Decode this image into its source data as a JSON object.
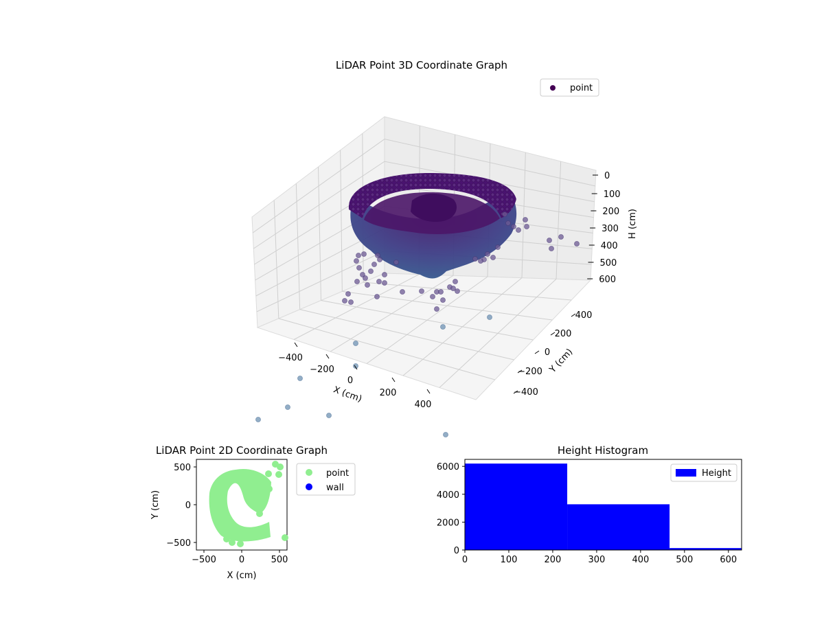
{
  "chart_data": [
    {
      "type": "scatter",
      "title": "LiDAR Point 3D Coordinate Graph",
      "xlabel": "X (cm)",
      "ylabel": "Y (cm)",
      "zlabel": "H (cm)",
      "xlim": [
        -500,
        500
      ],
      "ylim": [
        -500,
        500
      ],
      "zlim": [
        0,
        620
      ],
      "z_inverted": true,
      "x_ticks": [
        "−400",
        "−200",
        "0",
        "200",
        "400"
      ],
      "y_ticks": [
        "−400",
        "−200",
        "0",
        "200",
        "400"
      ],
      "z_ticks": [
        "0",
        "100",
        "200",
        "300",
        "400",
        "500",
        "600"
      ],
      "legend": [
        "point"
      ],
      "legend_position": "upper-right",
      "grid": true,
      "cmap": "viridis",
      "series": [
        {
          "name": "point",
          "description_ring": {
            "radius": 460,
            "h_top": 0,
            "h_bottom": 300
          },
          "x": [
            -430,
            -380,
            -300,
            -250,
            -200,
            -150,
            350,
            420,
            460,
            480,
            500,
            -120,
            -80,
            30,
            80,
            120,
            50,
            20
          ],
          "y": [
            -150,
            -100,
            -200,
            -250,
            150,
            180,
            100,
            160,
            250,
            300,
            380,
            -300,
            -350,
            -420,
            -380,
            -300,
            -420,
            -440
          ],
          "h": [
            380,
            420,
            450,
            460,
            380,
            400,
            290,
            300,
            310,
            320,
            300,
            500,
            540,
            560,
            540,
            520,
            600,
            610
          ]
        }
      ]
    },
    {
      "type": "scatter",
      "title": "LiDAR Point 2D Coordinate Graph",
      "xlabel": "X (cm)",
      "ylabel": "Y (cm)",
      "xlim": [
        -600,
        600
      ],
      "ylim": [
        -600,
        600
      ],
      "x_ticks": [
        "−500",
        "0",
        "500"
      ],
      "y_ticks": [
        "−500",
        "0",
        "500"
      ],
      "legend": [
        "point",
        "wall"
      ],
      "legend_position": "outside-right",
      "colors": {
        "point": "#90ee90",
        "wall": "#0000ff"
      }
    },
    {
      "type": "bar",
      "title": "Height Histogram",
      "xlim": [
        0,
        630
      ],
      "ylim": [
        0,
        6500
      ],
      "x_ticks": [
        "0",
        "100",
        "200",
        "300",
        "400",
        "500",
        "600"
      ],
      "y_ticks": [
        "0",
        "2000",
        "4000",
        "6000"
      ],
      "bins": [
        [
          0,
          233
        ],
        [
          233,
          466
        ],
        [
          466,
          630
        ]
      ],
      "values": [
        6200,
        3280,
        140
      ],
      "legend": [
        "Height"
      ],
      "legend_position": "upper-right",
      "color": "#0000ff"
    }
  ]
}
